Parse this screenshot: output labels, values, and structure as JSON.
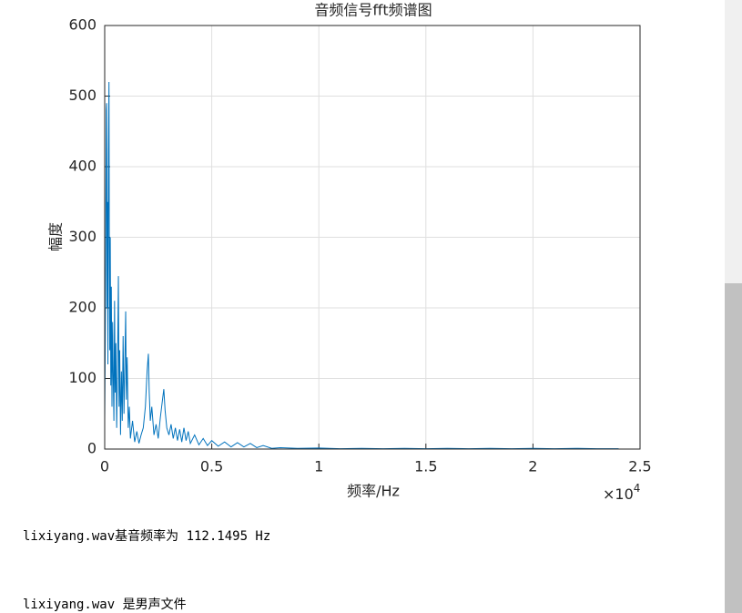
{
  "chart_data": {
    "type": "line",
    "title": "音频信号fft频谱图",
    "x_label": "频率/Hz",
    "y_label": "幅度",
    "x_multiplier": {
      "base": "×10",
      "exponent": "4"
    },
    "color": "#0072bd",
    "grid": true,
    "xlim": [
      0,
      25000
    ],
    "ylim": [
      0,
      600
    ],
    "xticks": [
      0,
      {
        "value": 5000,
        "label": "0.5"
      },
      {
        "value": 10000,
        "label": "1"
      },
      {
        "value": 15000,
        "label": "1.5"
      },
      {
        "value": 20000,
        "label": "2"
      },
      {
        "value": 25000,
        "label": "2.5"
      }
    ],
    "yticks": [
      0,
      100,
      200,
      300,
      400,
      500,
      600
    ],
    "x": [
      0,
      25,
      50,
      75,
      90,
      110,
      130,
      150,
      175,
      200,
      215,
      235,
      260,
      285,
      310,
      340,
      370,
      400,
      430,
      460,
      490,
      520,
      560,
      600,
      640,
      670,
      700,
      740,
      780,
      820,
      860,
      900,
      940,
      980,
      1010,
      1050,
      1100,
      1150,
      1200,
      1300,
      1400,
      1500,
      1600,
      1700,
      1800,
      1900,
      1980,
      2040,
      2080,
      2130,
      2200,
      2300,
      2400,
      2500,
      2600,
      2700,
      2760,
      2820,
      2900,
      3000,
      3100,
      3200,
      3300,
      3400,
      3500,
      3600,
      3700,
      3800,
      3900,
      4000,
      4200,
      4400,
      4600,
      4800,
      5000,
      5300,
      5600,
      5900,
      6200,
      6500,
      6800,
      7100,
      7400,
      7800,
      8200,
      9000,
      10000,
      11000,
      12000,
      13000,
      14000,
      15000,
      16000,
      17000,
      18000,
      19000,
      20000,
      21000,
      22000,
      23000,
      24000
    ],
    "y": [
      40,
      150,
      300,
      480,
      490,
      200,
      350,
      120,
      420,
      520,
      300,
      140,
      300,
      90,
      230,
      60,
      180,
      100,
      40,
      210,
      80,
      150,
      30,
      120,
      245,
      60,
      140,
      20,
      110,
      40,
      160,
      50,
      120,
      195,
      70,
      130,
      30,
      60,
      15,
      40,
      10,
      25,
      8,
      20,
      30,
      60,
      110,
      135,
      80,
      40,
      60,
      20,
      35,
      15,
      45,
      70,
      85,
      55,
      30,
      20,
      35,
      15,
      30,
      12,
      28,
      10,
      30,
      12,
      25,
      8,
      20,
      6,
      15,
      5,
      12,
      4,
      10,
      3,
      9,
      3,
      8,
      2,
      5,
      1,
      2,
      1,
      1.5,
      0.5,
      1,
      0.5,
      1,
      0.5,
      1,
      0.5,
      1,
      0.5,
      1,
      0.5,
      1,
      0.5,
      0.5
    ]
  },
  "output": {
    "lines": [
      "lixiyang.wav基音频率为 112.1495 Hz",
      "lixiyang.wav 是男声文件"
    ]
  }
}
